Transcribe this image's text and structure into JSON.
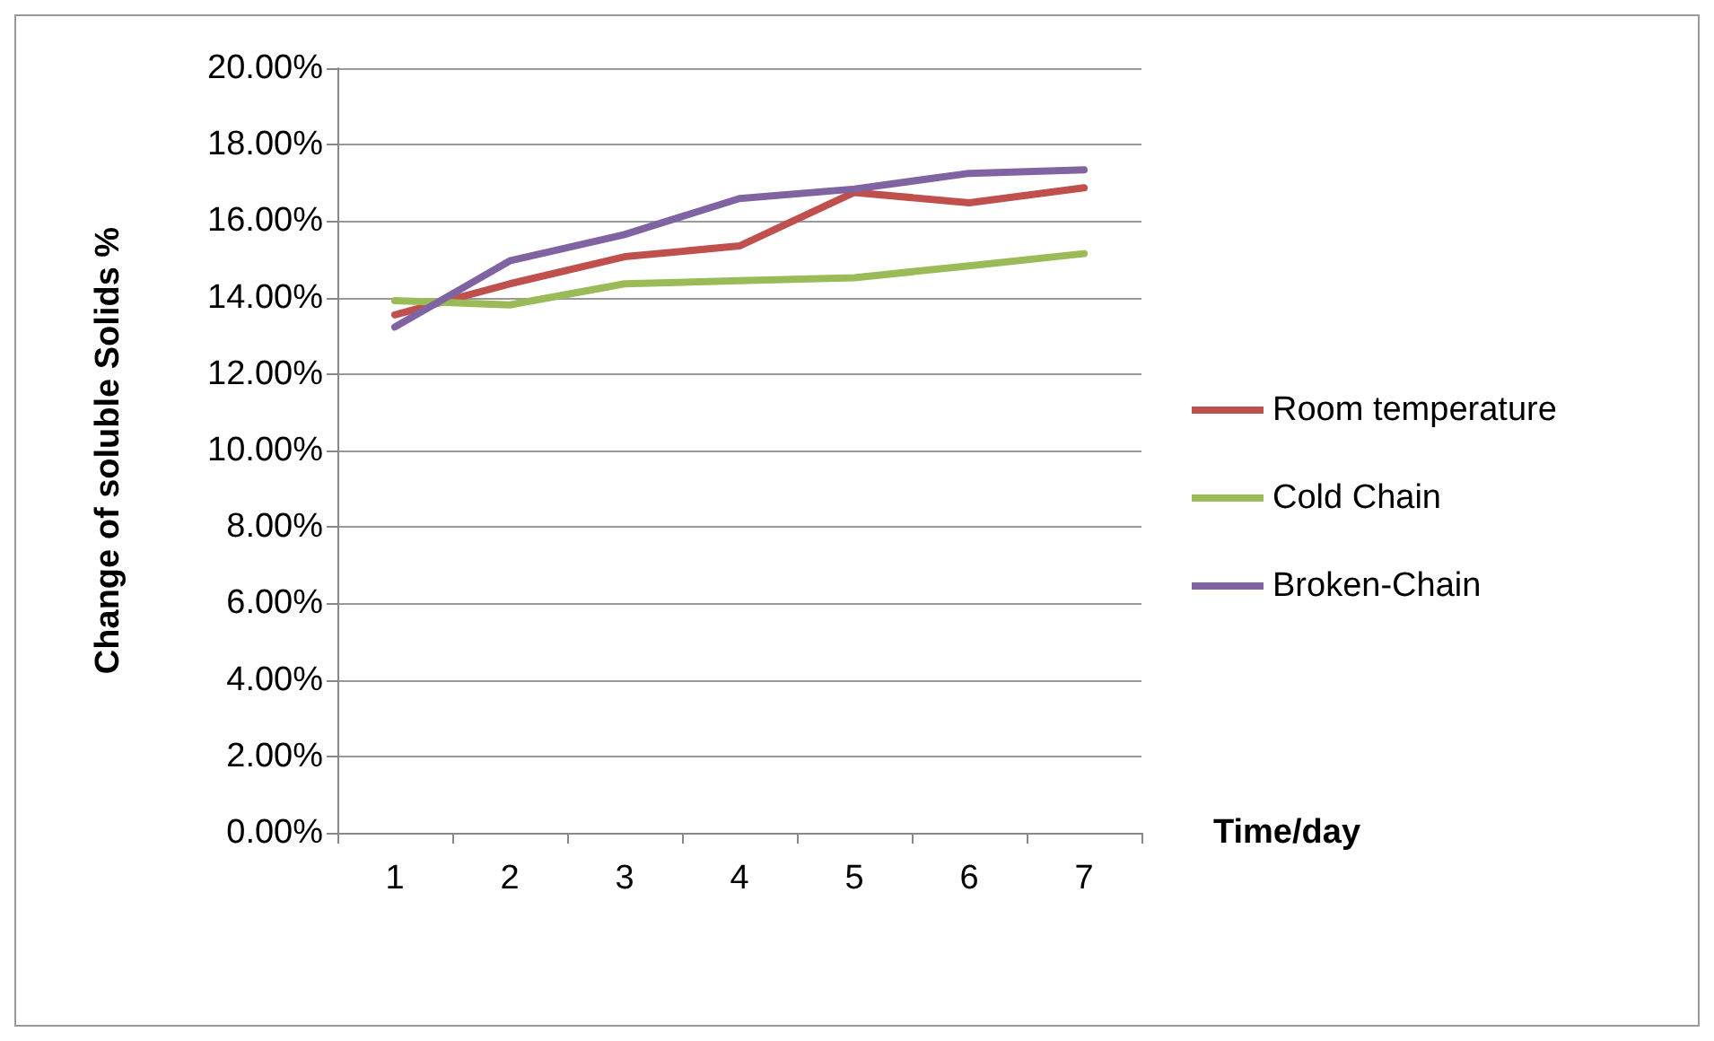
{
  "chart_data": {
    "type": "line",
    "xlabel": "Time/day",
    "ylabel": "Change of soluble Solids %",
    "categories": [
      "1",
      "2",
      "3",
      "4",
      "5",
      "6",
      "7"
    ],
    "series": [
      {
        "name": "Room temperature",
        "color": "#c0504d",
        "values": [
          13.55,
          14.36,
          15.07,
          15.35,
          16.75,
          16.48,
          16.87
        ]
      },
      {
        "name": "Cold Chain",
        "color": "#9bbb59",
        "values": [
          13.92,
          13.81,
          14.36,
          14.44,
          14.52,
          14.83,
          15.15
        ]
      },
      {
        "name": "Broken-Chain",
        "color": "#8064a2",
        "values": [
          13.23,
          14.96,
          15.65,
          16.59,
          16.84,
          17.25,
          17.34
        ]
      }
    ],
    "ylim": [
      0,
      20
    ],
    "yticks": [
      {
        "value": 0,
        "label": "0.00%"
      },
      {
        "value": 2,
        "label": "2.00%"
      },
      {
        "value": 4,
        "label": "4.00%"
      },
      {
        "value": 6,
        "label": "6.00%"
      },
      {
        "value": 8,
        "label": "8.00%"
      },
      {
        "value": 10,
        "label": "10.00%"
      },
      {
        "value": 12,
        "label": "12.00%"
      },
      {
        "value": 14,
        "label": "14.00%"
      },
      {
        "value": 16,
        "label": "16.00%"
      },
      {
        "value": 18,
        "label": "18.00%"
      },
      {
        "value": 20,
        "label": "20.00%"
      }
    ],
    "grid": "y",
    "legend": "right",
    "marker": "none",
    "line_style": "solid"
  }
}
